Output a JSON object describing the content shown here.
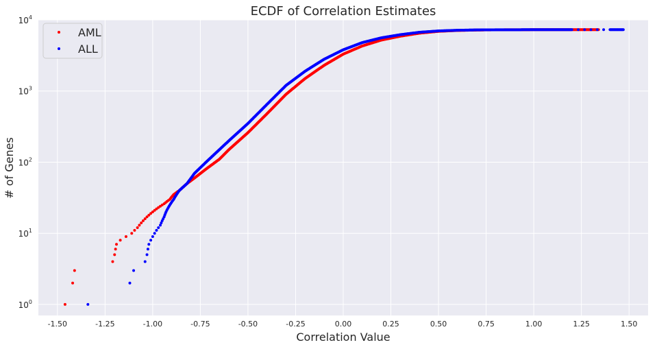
{
  "chart_data": {
    "type": "scatter",
    "title": "ECDF of Correlation Estimates",
    "xlabel": "Correlation Value",
    "ylabel": "# of Genes",
    "xlim": [
      -1.6,
      1.6
    ],
    "ylim": [
      0.7,
      10000
    ],
    "yscale": "log",
    "grid": true,
    "legend_position": "top-left",
    "x_ticks": [
      "-1.50",
      "-1.25",
      "-1.00",
      "-0.75",
      "-0.50",
      "-0.25",
      "0.00",
      "0.25",
      "0.50",
      "0.75",
      "1.00",
      "1.25",
      "1.50"
    ],
    "y_ticks": [
      {
        "value": 1,
        "base": "10",
        "exp": "0"
      },
      {
        "value": 10,
        "base": "10",
        "exp": "1"
      },
      {
        "value": 100,
        "base": "10",
        "exp": "2"
      },
      {
        "value": 1000,
        "base": "10",
        "exp": "3"
      },
      {
        "value": 10000,
        "base": "10",
        "exp": "4"
      }
    ],
    "series": [
      {
        "name": "AML",
        "color": "#ff0000",
        "points": [
          [
            -1.46,
            1
          ],
          [
            -1.42,
            2
          ],
          [
            -1.41,
            3
          ],
          [
            -1.21,
            4
          ],
          [
            -1.2,
            5
          ],
          [
            -1.195,
            6
          ],
          [
            -1.19,
            7
          ],
          [
            -1.17,
            8
          ],
          [
            -1.14,
            9
          ],
          [
            -1.11,
            10
          ],
          [
            -1.08,
            12
          ],
          [
            -1.06,
            14
          ],
          [
            -1.04,
            16
          ],
          [
            -1.02,
            18
          ],
          [
            -1.0,
            20
          ],
          [
            -0.97,
            23
          ],
          [
            -0.94,
            26
          ],
          [
            -0.91,
            30
          ],
          [
            -0.89,
            35
          ],
          [
            -0.86,
            40
          ],
          [
            -0.82,
            50
          ],
          [
            -0.78,
            60
          ],
          [
            -0.72,
            80
          ],
          [
            -0.65,
            110
          ],
          [
            -0.6,
            150
          ],
          [
            -0.5,
            260
          ],
          [
            -0.4,
            480
          ],
          [
            -0.3,
            900
          ],
          [
            -0.2,
            1500
          ],
          [
            -0.1,
            2300
          ],
          [
            0.0,
            3300
          ],
          [
            0.1,
            4300
          ],
          [
            0.2,
            5200
          ],
          [
            0.3,
            5900
          ],
          [
            0.4,
            6500
          ],
          [
            0.5,
            6900
          ],
          [
            0.6,
            7100
          ],
          [
            0.7,
            7200
          ],
          [
            0.8,
            7250
          ],
          [
            0.9,
            7270
          ],
          [
            1.0,
            7280
          ],
          [
            1.1,
            7285
          ],
          [
            1.34,
            7290
          ]
        ]
      },
      {
        "name": "ALL",
        "color": "#0000ff",
        "points": [
          [
            -1.34,
            1
          ],
          [
            -1.12,
            2
          ],
          [
            -1.1,
            3
          ],
          [
            -1.04,
            4
          ],
          [
            -1.03,
            5
          ],
          [
            -1.025,
            6
          ],
          [
            -1.02,
            7
          ],
          [
            -1.0,
            9
          ],
          [
            -0.98,
            11
          ],
          [
            -0.96,
            13
          ],
          [
            -0.95,
            15
          ],
          [
            -0.94,
            17
          ],
          [
            -0.93,
            20
          ],
          [
            -0.91,
            25
          ],
          [
            -0.89,
            30
          ],
          [
            -0.86,
            40
          ],
          [
            -0.82,
            50
          ],
          [
            -0.78,
            70
          ],
          [
            -0.72,
            100
          ],
          [
            -0.65,
            150
          ],
          [
            -0.6,
            200
          ],
          [
            -0.5,
            350
          ],
          [
            -0.4,
            650
          ],
          [
            -0.3,
            1200
          ],
          [
            -0.2,
            1900
          ],
          [
            -0.1,
            2800
          ],
          [
            0.0,
            3800
          ],
          [
            0.1,
            4800
          ],
          [
            0.2,
            5600
          ],
          [
            0.3,
            6200
          ],
          [
            0.4,
            6700
          ],
          [
            0.5,
            7000
          ],
          [
            0.6,
            7150
          ],
          [
            0.7,
            7230
          ],
          [
            0.8,
            7260
          ],
          [
            0.9,
            7275
          ],
          [
            1.0,
            7283
          ],
          [
            1.1,
            7288
          ],
          [
            1.2,
            7290
          ],
          [
            1.4,
            7290
          ],
          [
            1.47,
            7292
          ]
        ]
      }
    ]
  }
}
